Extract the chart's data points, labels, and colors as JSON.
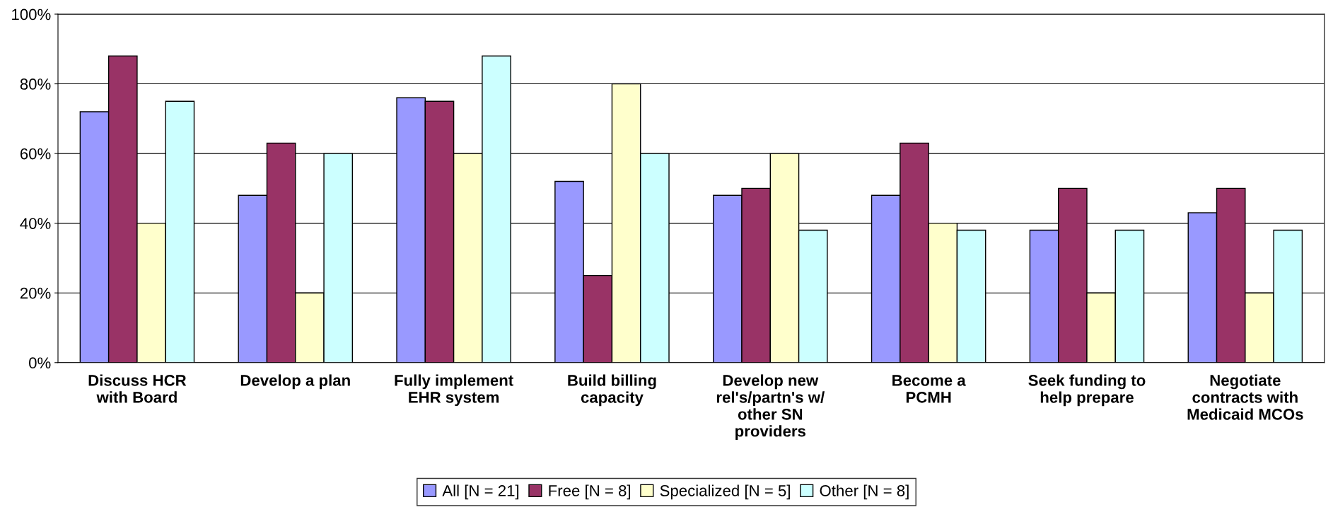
{
  "chart_data": {
    "type": "bar",
    "categories": [
      "Discuss HCR\nwith Board",
      "Develop a plan",
      "Fully implement\nEHR system",
      "Build billing\ncapacity",
      "Develop new\nrel's/partn's w/\nother SN\nproviders",
      "Become a\nPCMH",
      "Seek funding to\nhelp prepare",
      "Negotiate\ncontracts with\nMedicaid MCOs"
    ],
    "series": [
      {
        "name": "All [N = 21]",
        "color": "#9999ff",
        "values": [
          72,
          48,
          76,
          52,
          48,
          48,
          38,
          43
        ]
      },
      {
        "name": "Free [N = 8]",
        "color": "#993366",
        "values": [
          88,
          63,
          75,
          25,
          50,
          63,
          50,
          50
        ]
      },
      {
        "name": "Specialized [N = 5]",
        "color": "#ffffcc",
        "values": [
          40,
          20,
          60,
          80,
          60,
          40,
          20,
          20
        ]
      },
      {
        "name": "Other [N = 8]",
        "color": "#ccffff",
        "values": [
          75,
          60,
          88,
          60,
          38,
          38,
          38,
          38
        ]
      }
    ],
    "ylim": [
      0,
      100
    ],
    "yticks": [
      {
        "value": 0,
        "label": "0%"
      },
      {
        "value": 20,
        "label": "20%"
      },
      {
        "value": 40,
        "label": "40%"
      },
      {
        "value": 60,
        "label": "60%"
      },
      {
        "value": 80,
        "label": "80%"
      },
      {
        "value": 100,
        "label": "100%"
      }
    ],
    "grid": "y",
    "legend": "bottom"
  }
}
